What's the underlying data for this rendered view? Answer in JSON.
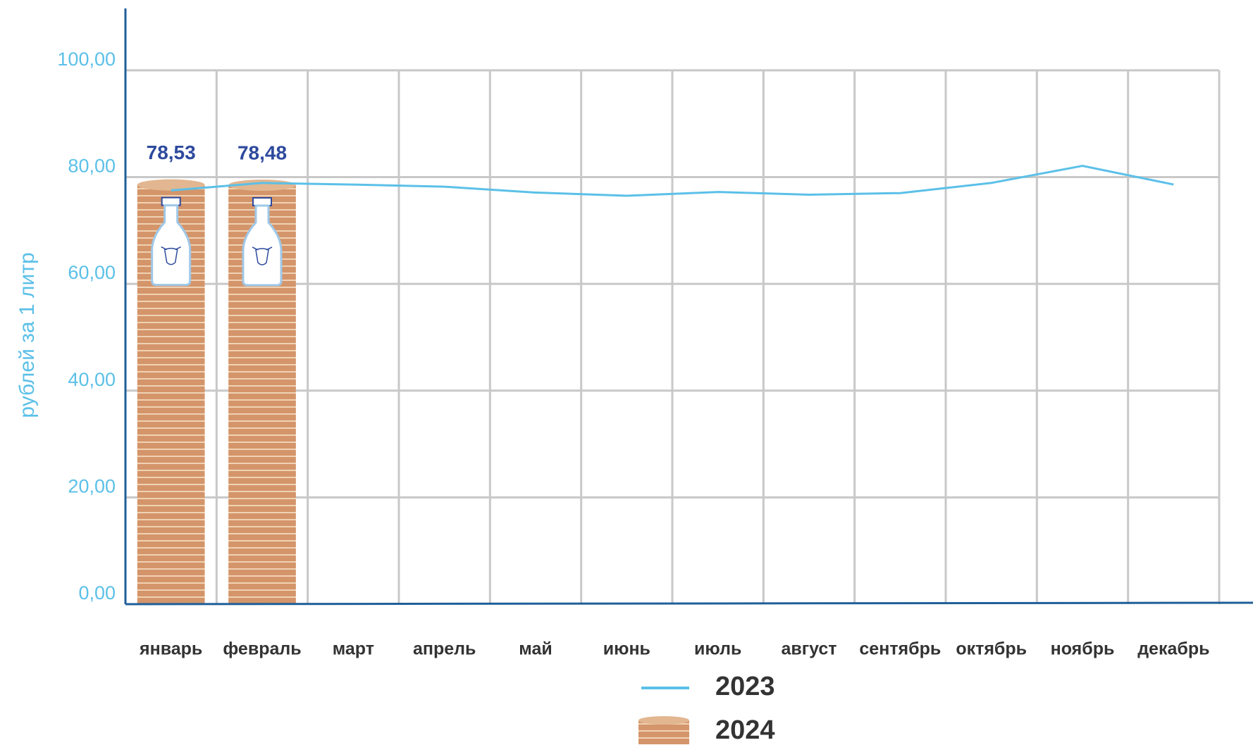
{
  "chart_data": {
    "type": "combo",
    "y_label": "рублей за 1 литр",
    "categories": [
      "январь",
      "февраль",
      "март",
      "апрель",
      "май",
      "июнь",
      "июль",
      "август",
      "сентябрь",
      "октябрь",
      "ноябрь",
      "декабрь"
    ],
    "series": [
      {
        "name": "2023",
        "type": "line",
        "color": "#5bc0e8",
        "values": [
          77.5,
          78.9,
          78.6,
          78.2,
          77.1,
          76.5,
          77.2,
          76.7,
          77.0,
          78.9,
          82.1,
          78.6
        ]
      },
      {
        "name": "2024",
        "type": "bar",
        "color": "#d4956a",
        "values": [
          78.53,
          78.48,
          null,
          null,
          null,
          null,
          null,
          null,
          null,
          null,
          null,
          null
        ],
        "value_labels": [
          "78,53",
          "78,48",
          null,
          null,
          null,
          null,
          null,
          null,
          null,
          null,
          null,
          null
        ]
      }
    ],
    "ylim": [
      0,
      110
    ],
    "yticks": [
      {
        "value": 0,
        "label": "0,00"
      },
      {
        "value": 20,
        "label": "20,00"
      },
      {
        "value": 40,
        "label": "40,00"
      },
      {
        "value": 60,
        "label": "60,00"
      },
      {
        "value": 80,
        "label": "80,00"
      },
      {
        "value": 100,
        "label": "100,00"
      }
    ],
    "grid": true
  }
}
